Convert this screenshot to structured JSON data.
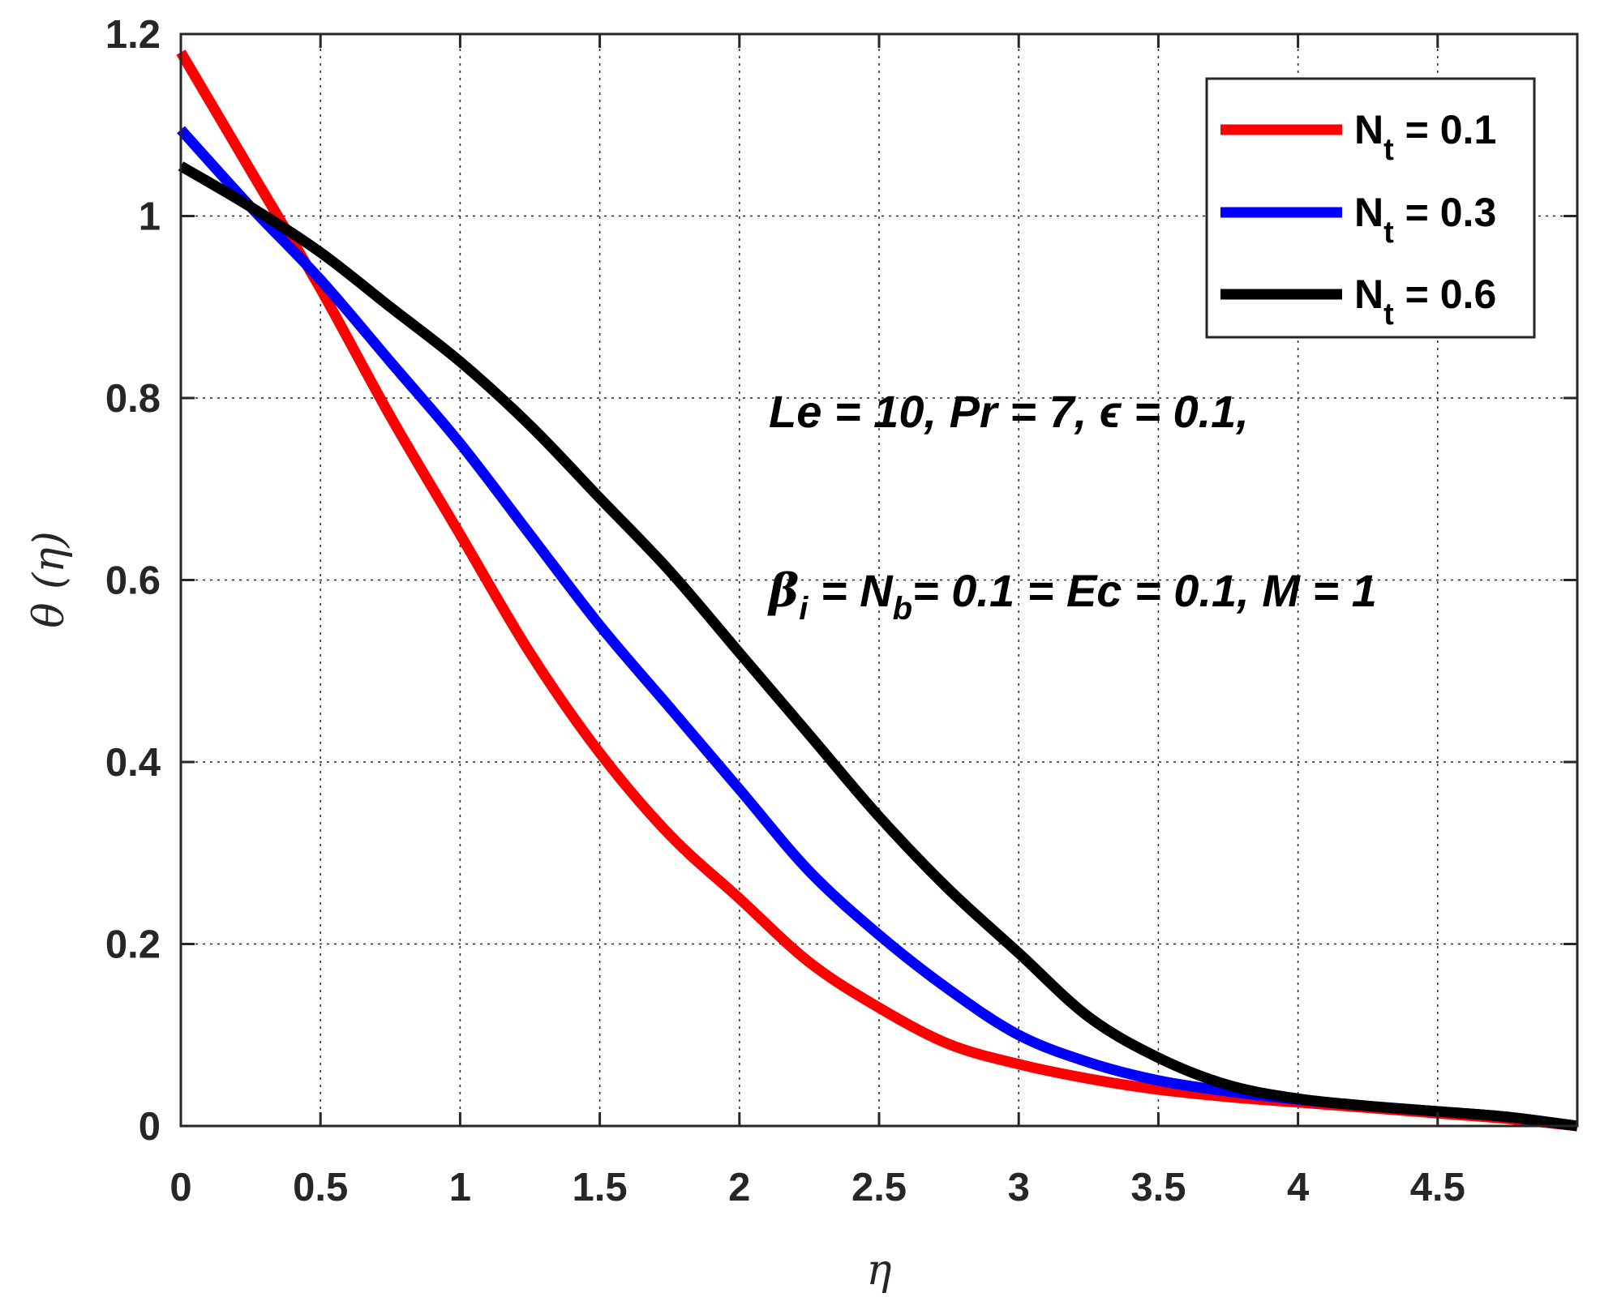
{
  "chart_data": {
    "type": "line",
    "xlabel": "η",
    "ylabel": "θ (η)",
    "xlim": [
      0,
      5
    ],
    "ylim": [
      0,
      1.2
    ],
    "grid": true,
    "x_ticks": [
      0,
      0.5,
      1,
      1.5,
      2,
      2.5,
      3,
      3.5,
      4,
      4.5
    ],
    "x_tick_labels": [
      "0",
      "0.5",
      "1",
      "1.5",
      "2",
      "2.5",
      "3",
      "3.5",
      "4",
      "4.5"
    ],
    "y_ticks": [
      0,
      0.2,
      0.4,
      0.6,
      0.8,
      1,
      1.2
    ],
    "y_tick_labels": [
      "0",
      "0.2",
      "0.4",
      "0.6",
      "0.8",
      "1",
      "1.2"
    ],
    "legend_position": "top-right",
    "series": [
      {
        "name": "Nt = 0.1",
        "legend_base": "N",
        "legend_sub": "t",
        "legend_rest": " = 0.1",
        "color": "#ff0000",
        "x": [
          0,
          0.25,
          0.5,
          0.75,
          1,
          1.25,
          1.5,
          1.75,
          2,
          2.25,
          2.5,
          2.75,
          3,
          3.25,
          3.5,
          3.75,
          4,
          4.25,
          4.5,
          4.75,
          5
        ],
        "y": [
          1.18,
          1.05,
          0.92,
          0.78,
          0.65,
          0.52,
          0.41,
          0.32,
          0.25,
          0.18,
          0.13,
          0.09,
          0.068,
          0.052,
          0.04,
          0.032,
          0.026,
          0.02,
          0.014,
          0.008,
          0
        ]
      },
      {
        "name": "Nt = 0.3",
        "legend_base": "N",
        "legend_sub": "t",
        "legend_rest": " = 0.3",
        "color": "#0000ff",
        "x": [
          0,
          0.25,
          0.5,
          0.75,
          1,
          1.25,
          1.5,
          1.75,
          2,
          2.25,
          2.5,
          2.75,
          3,
          3.25,
          3.5,
          3.75,
          4,
          4.25,
          4.5,
          4.75,
          5
        ],
        "y": [
          1.095,
          1.01,
          0.93,
          0.84,
          0.75,
          0.65,
          0.55,
          0.46,
          0.37,
          0.28,
          0.21,
          0.15,
          0.1,
          0.07,
          0.05,
          0.038,
          0.029,
          0.022,
          0.016,
          0.01,
          0
        ]
      },
      {
        "name": "Nt = 0.6",
        "legend_base": "N",
        "legend_sub": "t",
        "legend_rest": " = 0.6",
        "color": "#000000",
        "x": [
          0,
          0.25,
          0.5,
          0.75,
          1,
          1.25,
          1.5,
          1.75,
          2,
          2.25,
          2.5,
          2.75,
          3,
          3.25,
          3.5,
          3.75,
          4,
          4.25,
          4.5,
          4.75,
          5
        ],
        "y": [
          1.055,
          1.01,
          0.96,
          0.9,
          0.84,
          0.77,
          0.69,
          0.61,
          0.52,
          0.43,
          0.34,
          0.26,
          0.19,
          0.12,
          0.075,
          0.045,
          0.03,
          0.022,
          0.016,
          0.01,
          0
        ]
      }
    ],
    "annotations": {
      "line1": "Le = 10, Pr = 7,  ϵ = 0.1,",
      "line2_beta": "β",
      "line2_beta_sub": "i",
      "line2_eq": " = N",
      "line2_nb_sub": "b",
      "line2_rest": "= 0.1 = Ec = 0.1, M = 1"
    }
  }
}
